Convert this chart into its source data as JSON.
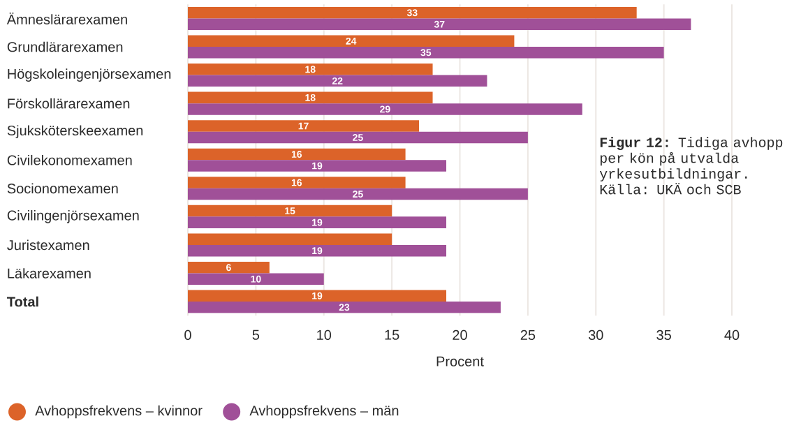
{
  "chart_data": {
    "type": "bar",
    "orientation": "horizontal",
    "categories": [
      "Ämneslärarexamen",
      "Grundlärarexamen",
      "Högskoleingenjörsexamen",
      "Förskollärarexamen",
      "Sjuksköterskeexamen",
      "Civilekonomexamen",
      "Socionomexamen",
      "Civilingenjörsexamen",
      "Juristexamen",
      "Läkarexamen",
      "**Total**"
    ],
    "series": [
      {
        "name": "Avhoppsfrekvens – kvinnor",
        "color": "#dc6329",
        "values": [
          33,
          24,
          18,
          18,
          17,
          16,
          16,
          15,
          15,
          6,
          19
        ],
        "value_labels": [
          "33",
          "24",
          "18",
          "18",
          "17",
          "16",
          "16",
          "15",
          null,
          "6",
          "19"
        ]
      },
      {
        "name": "Avhoppsfrekvens – män",
        "color": "#a05098",
        "values": [
          37,
          35,
          22,
          29,
          25,
          19,
          25,
          19,
          19,
          10,
          23
        ],
        "value_labels": [
          "37",
          "35",
          "22",
          "29",
          "25",
          "19",
          "25",
          "19",
          "19",
          "10",
          "23"
        ]
      }
    ],
    "xlim": [
      0,
      40
    ],
    "xticks": [
      0,
      5,
      10,
      15,
      20,
      25,
      30,
      35,
      40
    ],
    "xlabel": "Procent",
    "grid": "x",
    "legend": "bottom",
    "annotations": [
      "**Figur 12:** Tidiga avhopp per kön på utvalda yrkesutbildningar. Källa: UKÄ och SCB"
    ]
  }
}
